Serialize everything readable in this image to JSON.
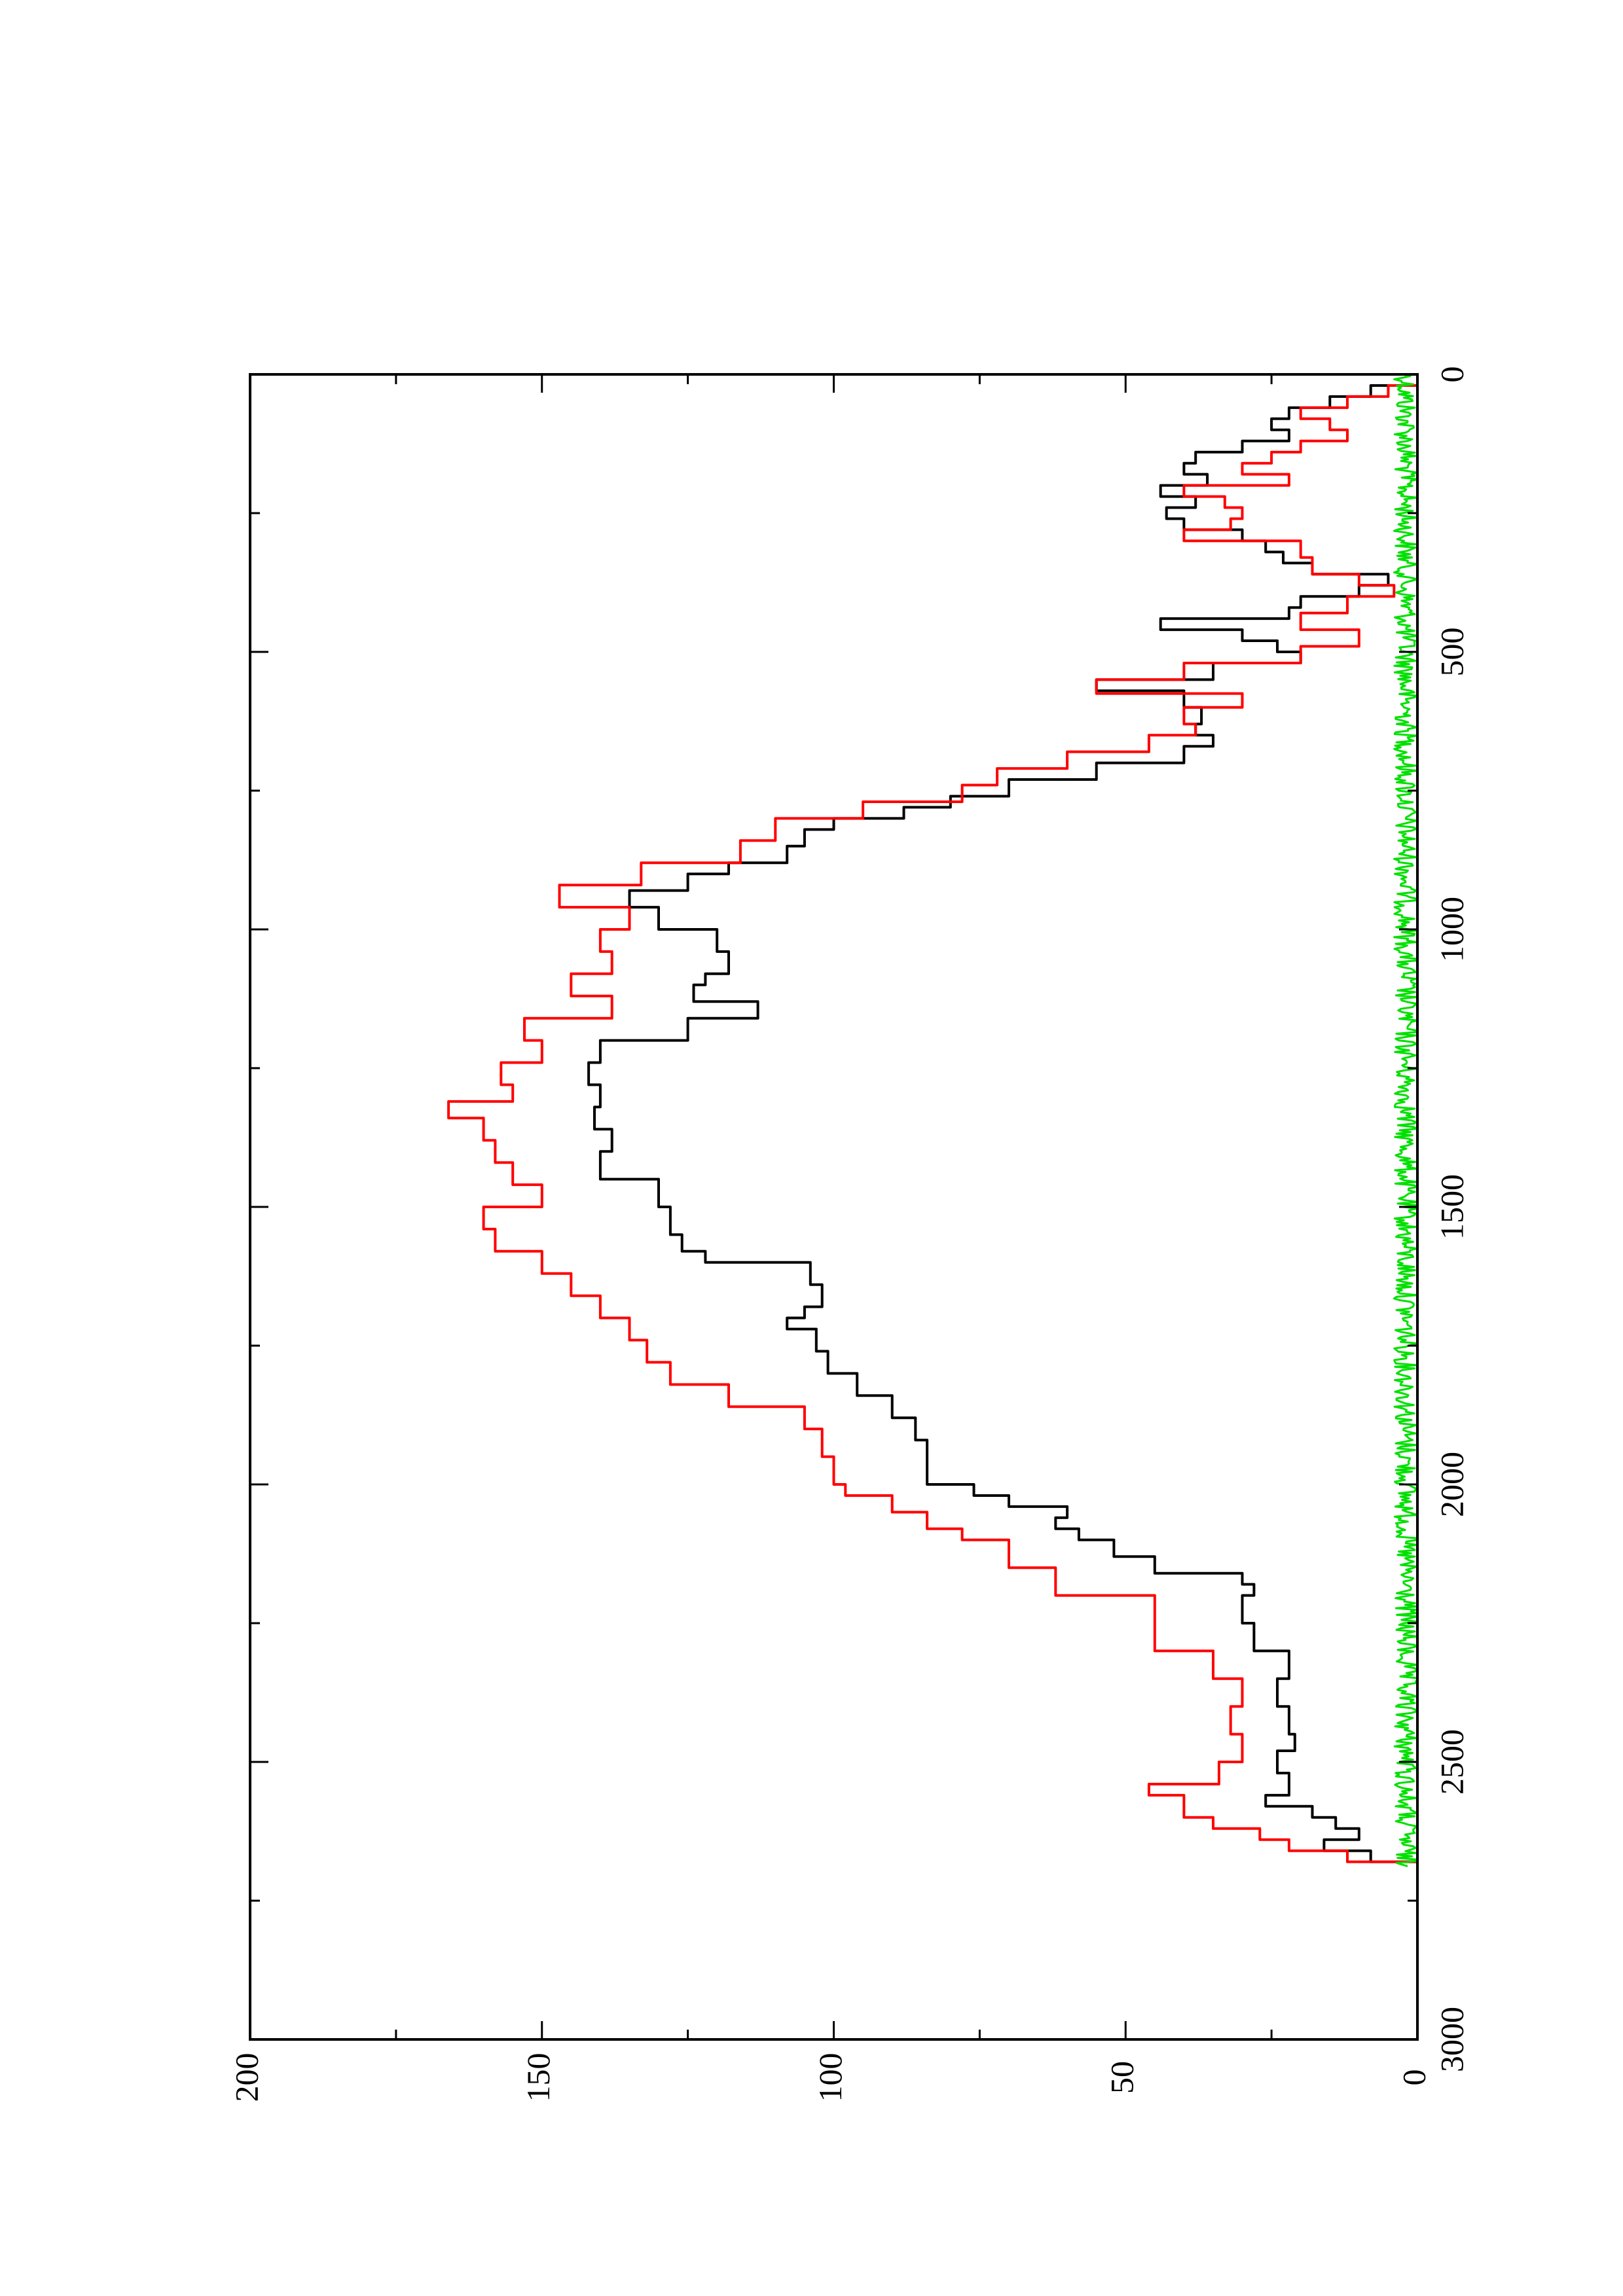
{
  "chart_data": {
    "type": "line",
    "orientation": "rotated-90-clockwise",
    "title": "",
    "xlabel": "",
    "ylabel": "",
    "xlim": [
      0,
      3000
    ],
    "ylim": [
      0,
      200
    ],
    "x_ticks": [
      "0",
      "500",
      "1000",
      "1500",
      "2000",
      "2500",
      "3000"
    ],
    "y_ticks": [
      "0",
      "50",
      "100",
      "150",
      "200"
    ],
    "grid": false,
    "legend": "none",
    "series": [
      {
        "color": "#000000",
        "points": [
          [
            0,
            0
          ],
          [
            20,
            8
          ],
          [
            40,
            15
          ],
          [
            60,
            22
          ],
          [
            80,
            25
          ],
          [
            100,
            22
          ],
          [
            120,
            30
          ],
          [
            140,
            38
          ],
          [
            160,
            40
          ],
          [
            180,
            36
          ],
          [
            200,
            44
          ],
          [
            220,
            38
          ],
          [
            240,
            43
          ],
          [
            260,
            40
          ],
          [
            280,
            30
          ],
          [
            300,
            26
          ],
          [
            320,
            23
          ],
          [
            340,
            18
          ],
          [
            360,
            5
          ],
          [
            380,
            10
          ],
          [
            400,
            20
          ],
          [
            420,
            22
          ],
          [
            440,
            44
          ],
          [
            460,
            30
          ],
          [
            480,
            24
          ],
          [
            500,
            20
          ],
          [
            520,
            35
          ],
          [
            550,
            55
          ],
          [
            570,
            40
          ],
          [
            600,
            37
          ],
          [
            630,
            38
          ],
          [
            650,
            35
          ],
          [
            670,
            40
          ],
          [
            700,
            55
          ],
          [
            730,
            70
          ],
          [
            760,
            80
          ],
          [
            780,
            88
          ],
          [
            800,
            100
          ],
          [
            820,
            105
          ],
          [
            850,
            108
          ],
          [
            880,
            118
          ],
          [
            900,
            125
          ],
          [
            930,
            135
          ],
          [
            960,
            130
          ],
          [
            1000,
            120
          ],
          [
            1040,
            118
          ],
          [
            1080,
            122
          ],
          [
            1100,
            124
          ],
          [
            1130,
            113
          ],
          [
            1160,
            125
          ],
          [
            1200,
            140
          ],
          [
            1240,
            142
          ],
          [
            1280,
            140
          ],
          [
            1320,
            141
          ],
          [
            1360,
            138
          ],
          [
            1400,
            140
          ],
          [
            1450,
            130
          ],
          [
            1500,
            128
          ],
          [
            1550,
            126
          ],
          [
            1580,
            122
          ],
          [
            1600,
            104
          ],
          [
            1640,
            102
          ],
          [
            1680,
            105
          ],
          [
            1700,
            108
          ],
          [
            1720,
            103
          ],
          [
            1760,
            101
          ],
          [
            1800,
            96
          ],
          [
            1840,
            90
          ],
          [
            1880,
            86
          ],
          [
            1920,
            84
          ],
          [
            1960,
            84
          ],
          [
            2000,
            76
          ],
          [
            2020,
            70
          ],
          [
            2040,
            60
          ],
          [
            2060,
            62
          ],
          [
            2080,
            58
          ],
          [
            2100,
            52
          ],
          [
            2130,
            45
          ],
          [
            2160,
            30
          ],
          [
            2180,
            28
          ],
          [
            2200,
            30
          ],
          [
            2250,
            28
          ],
          [
            2300,
            22
          ],
          [
            2350,
            24
          ],
          [
            2400,
            22
          ],
          [
            2450,
            21
          ],
          [
            2480,
            24
          ],
          [
            2520,
            22
          ],
          [
            2560,
            26
          ],
          [
            2580,
            18
          ],
          [
            2600,
            14
          ],
          [
            2620,
            10
          ],
          [
            2640,
            16
          ],
          [
            2660,
            8
          ],
          [
            2680,
            0
          ]
        ]
      },
      {
        "color": "#ff0000",
        "points": [
          [
            0,
            0
          ],
          [
            20,
            5
          ],
          [
            40,
            12
          ],
          [
            60,
            20
          ],
          [
            80,
            15
          ],
          [
            100,
            12
          ],
          [
            120,
            20
          ],
          [
            140,
            25
          ],
          [
            160,
            30
          ],
          [
            180,
            22
          ],
          [
            200,
            40
          ],
          [
            220,
            33
          ],
          [
            240,
            30
          ],
          [
            260,
            32
          ],
          [
            280,
            40
          ],
          [
            300,
            20
          ],
          [
            330,
            18
          ],
          [
            360,
            10
          ],
          [
            380,
            4
          ],
          [
            400,
            12
          ],
          [
            430,
            20
          ],
          [
            460,
            10
          ],
          [
            490,
            20
          ],
          [
            520,
            40
          ],
          [
            550,
            55
          ],
          [
            575,
            30
          ],
          [
            600,
            40
          ],
          [
            630,
            38
          ],
          [
            650,
            46
          ],
          [
            680,
            60
          ],
          [
            710,
            72
          ],
          [
            740,
            78
          ],
          [
            770,
            95
          ],
          [
            800,
            110
          ],
          [
            840,
            116
          ],
          [
            880,
            133
          ],
          [
            920,
            147
          ],
          [
            960,
            135
          ],
          [
            1000,
            140
          ],
          [
            1040,
            138
          ],
          [
            1080,
            145
          ],
          [
            1120,
            138
          ],
          [
            1160,
            153
          ],
          [
            1200,
            150
          ],
          [
            1240,
            157
          ],
          [
            1280,
            155
          ],
          [
            1310,
            166
          ],
          [
            1340,
            160
          ],
          [
            1380,
            158
          ],
          [
            1420,
            155
          ],
          [
            1460,
            150
          ],
          [
            1500,
            160
          ],
          [
            1540,
            158
          ],
          [
            1580,
            150
          ],
          [
            1620,
            145
          ],
          [
            1660,
            140
          ],
          [
            1700,
            135
          ],
          [
            1740,
            132
          ],
          [
            1780,
            128
          ],
          [
            1820,
            118
          ],
          [
            1860,
            105
          ],
          [
            1900,
            102
          ],
          [
            1950,
            100
          ],
          [
            2000,
            98
          ],
          [
            2020,
            90
          ],
          [
            2050,
            84
          ],
          [
            2080,
            78
          ],
          [
            2100,
            70
          ],
          [
            2150,
            62
          ],
          [
            2200,
            45
          ],
          [
            2250,
            45
          ],
          [
            2300,
            35
          ],
          [
            2350,
            30
          ],
          [
            2400,
            32
          ],
          [
            2450,
            30
          ],
          [
            2500,
            34
          ],
          [
            2540,
            46
          ],
          [
            2560,
            40
          ],
          [
            2600,
            35
          ],
          [
            2620,
            27
          ],
          [
            2640,
            22
          ],
          [
            2660,
            12
          ],
          [
            2680,
            0
          ]
        ]
      },
      {
        "color": "#00e000",
        "noise": true,
        "x_range": [
          0,
          2690
        ],
        "y_range": [
          0,
          4
        ]
      }
    ]
  }
}
